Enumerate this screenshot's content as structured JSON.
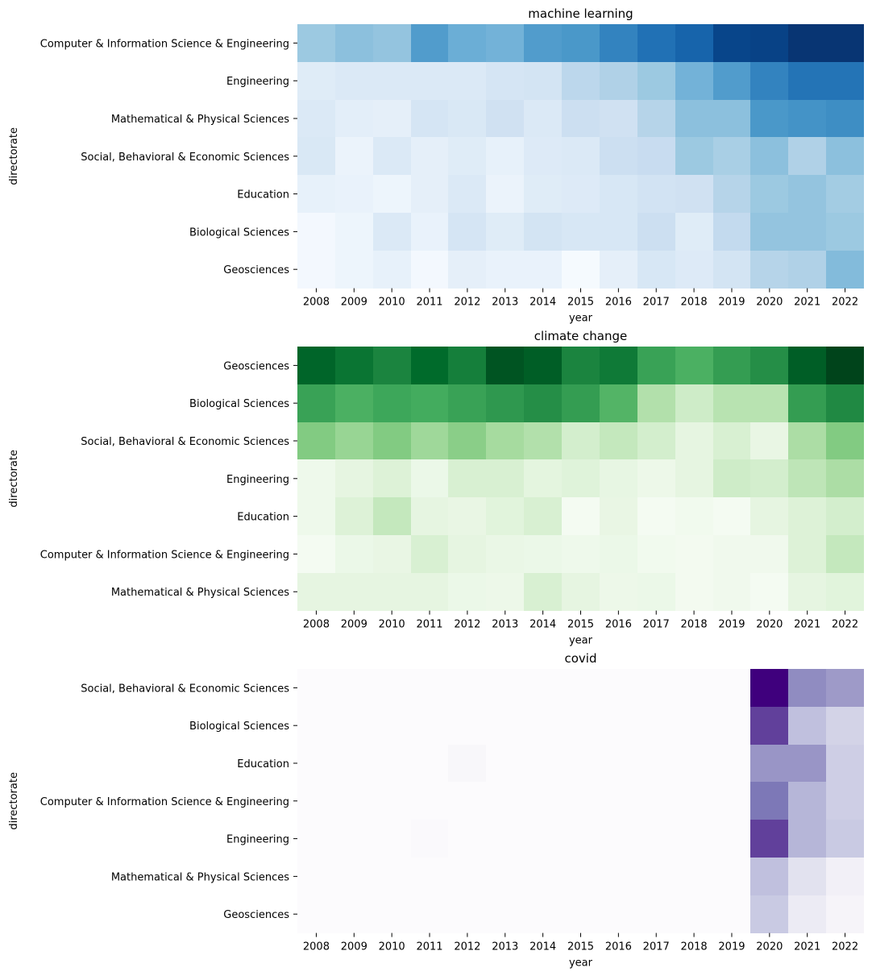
{
  "chart_data": [
    {
      "type": "heatmap",
      "title": "machine learning",
      "xlabel": "year",
      "ylabel": "directorate",
      "colormap": "Blues",
      "value_scale": "relative intensity 0-1",
      "x": [
        "2008",
        "2009",
        "2010",
        "2011",
        "2012",
        "2013",
        "2014",
        "2015",
        "2016",
        "2017",
        "2018",
        "2019",
        "2020",
        "2021",
        "2022"
      ],
      "y": [
        "Computer & Information Science & Engineering",
        "Engineering",
        "Mathematical & Physical Sciences",
        "Social, Behavioral & Economic Sciences",
        "Education",
        "Biological Sciences",
        "Geosciences"
      ],
      "values": [
        [
          0.38,
          0.42,
          0.4,
          0.58,
          0.5,
          0.48,
          0.58,
          0.6,
          0.68,
          0.75,
          0.8,
          0.92,
          0.93,
          0.98,
          0.98
        ],
        [
          0.12,
          0.14,
          0.14,
          0.14,
          0.14,
          0.17,
          0.18,
          0.28,
          0.32,
          0.38,
          0.48,
          0.58,
          0.68,
          0.74,
          0.74
        ],
        [
          0.14,
          0.1,
          0.09,
          0.17,
          0.15,
          0.2,
          0.14,
          0.22,
          0.2,
          0.3,
          0.42,
          0.42,
          0.6,
          0.62,
          0.64
        ],
        [
          0.15,
          0.06,
          0.14,
          0.09,
          0.12,
          0.08,
          0.13,
          0.14,
          0.22,
          0.24,
          0.38,
          0.34,
          0.42,
          0.32,
          0.42
        ],
        [
          0.08,
          0.07,
          0.05,
          0.09,
          0.14,
          0.06,
          0.12,
          0.13,
          0.16,
          0.19,
          0.2,
          0.3,
          0.38,
          0.4,
          0.36
        ],
        [
          0.02,
          0.05,
          0.14,
          0.07,
          0.17,
          0.12,
          0.18,
          0.16,
          0.16,
          0.22,
          0.12,
          0.26,
          0.4,
          0.4,
          0.38
        ],
        [
          0.02,
          0.05,
          0.08,
          0.02,
          0.09,
          0.07,
          0.07,
          0.01,
          0.09,
          0.16,
          0.13,
          0.18,
          0.3,
          0.32,
          0.44
        ]
      ]
    },
    {
      "type": "heatmap",
      "title": "climate change",
      "xlabel": "year",
      "ylabel": "directorate",
      "colormap": "Greens",
      "value_scale": "relative intensity 0-1",
      "x": [
        "2008",
        "2009",
        "2010",
        "2011",
        "2012",
        "2013",
        "2014",
        "2015",
        "2016",
        "2017",
        "2018",
        "2019",
        "2020",
        "2021",
        "2022"
      ],
      "y": [
        "Geosciences",
        "Biological Sciences",
        "Social, Behavioral & Economic Sciences",
        "Engineering",
        "Education",
        "Computer & Information Science & Engineering",
        "Mathematical & Physical Sciences"
      ],
      "values": [
        [
          0.9,
          0.84,
          0.78,
          0.88,
          0.8,
          0.95,
          0.92,
          0.78,
          0.82,
          0.66,
          0.6,
          0.68,
          0.74,
          0.92,
          1.0
        ],
        [
          0.66,
          0.6,
          0.64,
          0.62,
          0.66,
          0.7,
          0.74,
          0.68,
          0.58,
          0.32,
          0.22,
          0.3,
          0.3,
          0.68,
          0.76
        ],
        [
          0.46,
          0.4,
          0.46,
          0.38,
          0.44,
          0.36,
          0.32,
          0.2,
          0.26,
          0.2,
          0.12,
          0.18,
          0.1,
          0.34,
          0.46
        ],
        [
          0.06,
          0.12,
          0.16,
          0.08,
          0.18,
          0.18,
          0.13,
          0.15,
          0.11,
          0.07,
          0.12,
          0.22,
          0.2,
          0.28,
          0.34
        ],
        [
          0.06,
          0.16,
          0.26,
          0.12,
          0.1,
          0.14,
          0.18,
          0.02,
          0.1,
          0.02,
          0.04,
          0.02,
          0.12,
          0.16,
          0.2
        ],
        [
          0.02,
          0.08,
          0.1,
          0.18,
          0.12,
          0.09,
          0.08,
          0.06,
          0.08,
          0.04,
          0.03,
          0.05,
          0.05,
          0.16,
          0.26
        ],
        [
          0.12,
          0.12,
          0.12,
          0.12,
          0.08,
          0.07,
          0.18,
          0.12,
          0.07,
          0.08,
          0.03,
          0.05,
          0.02,
          0.12,
          0.14
        ]
      ]
    },
    {
      "type": "heatmap",
      "title": "covid",
      "xlabel": "year",
      "ylabel": "directorate",
      "colormap": "Purples",
      "value_scale": "relative intensity 0-1",
      "x": [
        "2008",
        "2009",
        "2010",
        "2011",
        "2012",
        "2013",
        "2014",
        "2015",
        "2016",
        "2017",
        "2018",
        "2019",
        "2020",
        "2021",
        "2022"
      ],
      "y": [
        "Social, Behavioral & Economic Sciences",
        "Biological Sciences",
        "Education",
        "Computer & Information Science & Engineering",
        "Engineering",
        "Mathematical & Physical Sciences",
        "Geosciences"
      ],
      "values": [
        [
          0,
          0,
          0,
          0,
          0,
          0,
          0,
          0,
          0,
          0,
          0,
          0,
          1.0,
          0.56,
          0.5
        ],
        [
          0,
          0,
          0,
          0,
          0,
          0,
          0,
          0,
          0,
          0,
          0,
          0,
          0.8,
          0.36,
          0.28
        ],
        [
          0,
          0,
          0,
          0,
          0.04,
          0,
          0,
          0,
          0,
          0,
          0,
          0,
          0.52,
          0.52,
          0.3
        ],
        [
          0,
          0,
          0,
          0,
          0,
          0,
          0,
          0,
          0,
          0,
          0,
          0,
          0.64,
          0.4,
          0.3
        ],
        [
          0,
          0,
          0,
          0.02,
          0,
          0,
          0,
          0,
          0,
          0,
          0,
          0,
          0.8,
          0.4,
          0.32
        ],
        [
          0,
          0,
          0,
          0,
          0,
          0,
          0,
          0,
          0,
          0,
          0,
          0,
          0.36,
          0.2,
          0.1
        ],
        [
          0,
          0,
          0,
          0,
          0,
          0,
          0,
          0,
          0,
          0,
          0,
          0,
          0.32,
          0.14,
          0.06
        ]
      ]
    }
  ]
}
